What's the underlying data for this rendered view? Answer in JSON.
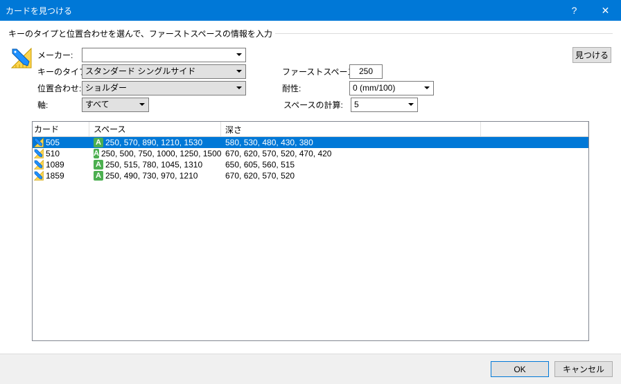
{
  "window": {
    "title": "カードを見つける",
    "help_symbol": "?",
    "close_symbol": "✕"
  },
  "group_legend": "キーのタイプと位置合わせを選んで、ファーストスペースの情報を入力",
  "labels": {
    "maker": "メーカー:",
    "key_type": "キーのタイプ:",
    "alignment": "位置合わせ:",
    "axis": "軸:",
    "first_space": "ファーストスペース:",
    "tolerance": "耐性:",
    "space_calc": "スペースの計算:"
  },
  "values": {
    "maker": "",
    "key_type": "スタンダード シングルサイド",
    "alignment": "ショルダー",
    "axis": "すべて",
    "first_space": "250",
    "tolerance": "0  (mm/100)",
    "space_calc": "5"
  },
  "buttons": {
    "find": "見つける",
    "ok": "OK",
    "cancel": "キャンセル"
  },
  "table": {
    "headers": {
      "card": "カード",
      "space": "スペース",
      "depth": "深さ",
      "extra": ""
    },
    "widths": {
      "card": 82,
      "space": 190,
      "extra": 155
    },
    "rows": [
      {
        "card": "505",
        "badge": "A",
        "space": "250, 570, 890, 1210, 1530",
        "depth": "580, 530, 480, 430, 380",
        "selected": true
      },
      {
        "card": "510",
        "badge": "A",
        "space": "250, 500, 750, 1000, 1250, 1500",
        "depth": "670, 620, 570, 520, 470, 420",
        "selected": false
      },
      {
        "card": "1089",
        "badge": "A",
        "space": "250, 515, 780, 1045, 1310",
        "depth": "650, 605, 560, 515",
        "selected": false
      },
      {
        "card": "1859",
        "badge": "A",
        "space": "250, 490, 730, 970, 1210",
        "depth": "670, 620, 570, 520",
        "selected": false
      }
    ]
  },
  "colors": {
    "accent": "#0078d7",
    "badge": "#4caf50",
    "key_blue": "#1e90ff",
    "key_yellow": "#ffd54f"
  }
}
